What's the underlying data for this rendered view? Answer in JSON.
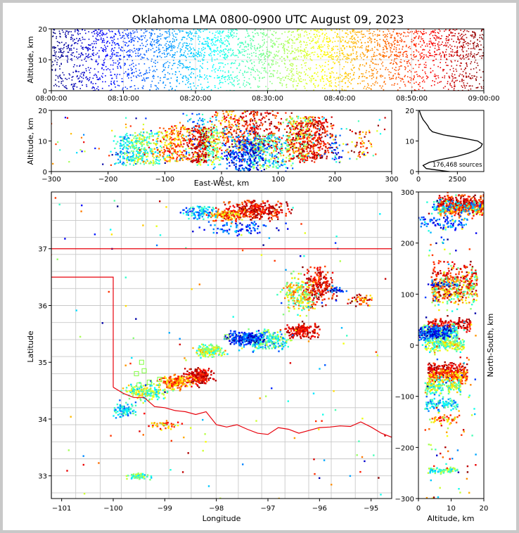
{
  "chart_data": [
    {
      "type": "scatter",
      "panel": "altitude-vs-time",
      "title": "Oklahoma LMA 0800-0900 UTC August 09, 2023",
      "ylabel": "Altitude, km",
      "ylim": [
        0,
        20
      ],
      "xlim_minutes": [
        0,
        60
      ],
      "x_tick_labels": [
        "08:00:00",
        "08:10:00",
        "08:20:00",
        "08:30:00",
        "08:40:00",
        "08:50:00",
        "09:00:00"
      ],
      "y_tick_labels": [
        "0",
        "10",
        "20"
      ],
      "colormap": "jet (color = time)",
      "grid": true
    },
    {
      "type": "scatter",
      "panel": "altitude-vs-east-west",
      "xlabel": "East-West, km",
      "ylabel": "Altitude, km",
      "xlim": [
        -300,
        300
      ],
      "ylim": [
        0,
        20
      ],
      "x_tick_labels": [
        "−300",
        "−200",
        "−100",
        "0",
        "100",
        "200",
        "300"
      ],
      "y_tick_labels": [
        "0",
        "10",
        "20"
      ]
    },
    {
      "type": "line",
      "panel": "altitude-histogram",
      "annotation": "176,468 sources",
      "xlim": [
        0,
        4200
      ],
      "ylim": [
        0,
        20
      ],
      "x_tick_labels": [
        "0",
        "2500"
      ],
      "y_tick_labels": [
        "0",
        "10",
        "20"
      ],
      "profile": [
        [
          2000,
          0
        ],
        [
          1500,
          0.3
        ],
        [
          500,
          1
        ],
        [
          300,
          2
        ],
        [
          700,
          3
        ],
        [
          1500,
          4
        ],
        [
          2500,
          5
        ],
        [
          3200,
          6
        ],
        [
          3700,
          7
        ],
        [
          4000,
          8
        ],
        [
          4100,
          9
        ],
        [
          3800,
          10
        ],
        [
          2800,
          11
        ],
        [
          1600,
          12
        ],
        [
          900,
          13
        ],
        [
          700,
          14
        ],
        [
          600,
          15
        ],
        [
          450,
          16
        ],
        [
          300,
          17
        ],
        [
          200,
          18
        ],
        [
          120,
          19
        ],
        [
          60,
          20
        ]
      ]
    },
    {
      "type": "scatter",
      "panel": "plan-view-map",
      "xlabel": "Longitude",
      "ylabel": "Latitude",
      "xlim": [
        -101.2,
        -94.6
      ],
      "ylim": [
        32.6,
        38.0
      ],
      "x_tick_labels": [
        "−101",
        "−100",
        "−99",
        "−98",
        "−97",
        "−96",
        "−95"
      ],
      "y_tick_labels": [
        "33",
        "34",
        "35",
        "36",
        "37"
      ]
    },
    {
      "type": "scatter",
      "panel": "north-south-vs-altitude",
      "xlabel": "Altitude, km",
      "ylabel": "North-South, km",
      "xlim": [
        0,
        20
      ],
      "ylim": [
        -300,
        300
      ],
      "x_tick_labels": [
        "0",
        "10",
        "20"
      ],
      "y_tick_labels": [
        "−300",
        "−200",
        "−100",
        "0",
        "100",
        "200",
        "300"
      ]
    }
  ],
  "colors": {
    "state_border": "#e8000b",
    "county_lines": "#c8c8c8",
    "station_marker": "#7fff3f",
    "histogram_line": "#000000"
  }
}
